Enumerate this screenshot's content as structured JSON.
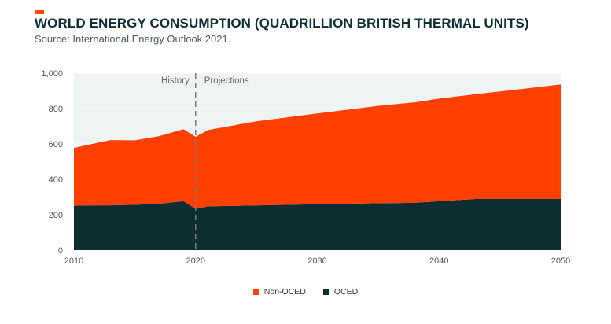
{
  "header": {
    "title": "WORLD ENERGY CONSUMPTION (QUADRILLION BRITISH THERMAL UNITS)",
    "subtitle": "Source: International Energy Outlook 2021."
  },
  "colors": {
    "accent": "#ff4a00",
    "non_oecd": "#ff4000",
    "oecd": "#0c2d31",
    "background": "#eef3f3",
    "grid": "#ffffff",
    "divider": "#7a7a7a",
    "axis_text": "#555555",
    "annotation_text": "#666666"
  },
  "chart_data": {
    "type": "area",
    "stacked": true,
    "x_range": [
      2010,
      2050
    ],
    "ylim": [
      0,
      1000
    ],
    "yticks": [
      0,
      200,
      400,
      600,
      800,
      1000
    ],
    "ytick_labels": [
      "0",
      "200",
      "400",
      "600",
      "800",
      "1,000"
    ],
    "xticks": [
      2010,
      2020,
      2030,
      2040,
      2050
    ],
    "xtick_labels": [
      "2010",
      "2020",
      "2030",
      "2040",
      "2050"
    ],
    "grid": true,
    "legend_position": "bottom-center",
    "annotations": [
      {
        "text": "History",
        "x": 2020,
        "side": "left"
      },
      {
        "text": "Projections",
        "x": 2020,
        "side": "right"
      }
    ],
    "divider_x": 2020,
    "series": [
      {
        "name": "OCED",
        "color": "#0c2d31",
        "points": [
          [
            2010,
            250
          ],
          [
            2011,
            252
          ],
          [
            2013,
            253
          ],
          [
            2015,
            256
          ],
          [
            2017,
            262
          ],
          [
            2019,
            277
          ],
          [
            2020,
            232
          ],
          [
            2021,
            247
          ],
          [
            2025,
            252
          ],
          [
            2030,
            259
          ],
          [
            2035,
            265
          ],
          [
            2038,
            267
          ],
          [
            2040,
            276
          ],
          [
            2043,
            289
          ],
          [
            2050,
            289
          ]
        ]
      },
      {
        "name": "Non-OCED",
        "color": "#ff4000",
        "points": [
          [
            2010,
            327
          ],
          [
            2011,
            341
          ],
          [
            2013,
            369
          ],
          [
            2015,
            364
          ],
          [
            2017,
            382
          ],
          [
            2019,
            406
          ],
          [
            2020,
            408
          ],
          [
            2021,
            431
          ],
          [
            2025,
            476
          ],
          [
            2030,
            513
          ],
          [
            2035,
            550
          ],
          [
            2038,
            568
          ],
          [
            2040,
            580
          ],
          [
            2043,
            592
          ],
          [
            2050,
            647
          ]
        ]
      }
    ]
  },
  "legend": {
    "items": [
      {
        "label": "Non-OCED",
        "color": "#ff4000"
      },
      {
        "label": "OCED",
        "color": "#0c2d31"
      }
    ]
  }
}
